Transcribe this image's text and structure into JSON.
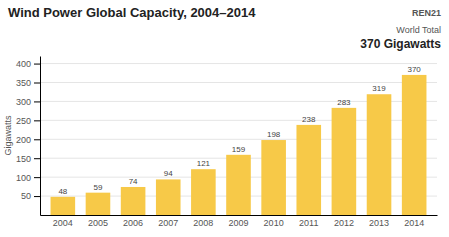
{
  "chart_data": {
    "type": "bar",
    "title": "Wind Power Global Capacity, 2004–2014",
    "ylabel": "Gigawatts",
    "categories": [
      "2004",
      "2005",
      "2006",
      "2007",
      "2008",
      "2009",
      "2010",
      "2011",
      "2012",
      "2013",
      "2014"
    ],
    "values": [
      48,
      59,
      74,
      94,
      121,
      159,
      198,
      238,
      283,
      319,
      370
    ],
    "color": "#F7C948",
    "ylim": [
      0,
      420
    ],
    "yticks": [
      50,
      100,
      150,
      200,
      250,
      300,
      350,
      400
    ],
    "grid": true,
    "data_labels": true,
    "annotations": [
      "REN21",
      "World Total",
      "370 Gigawatts"
    ]
  }
}
